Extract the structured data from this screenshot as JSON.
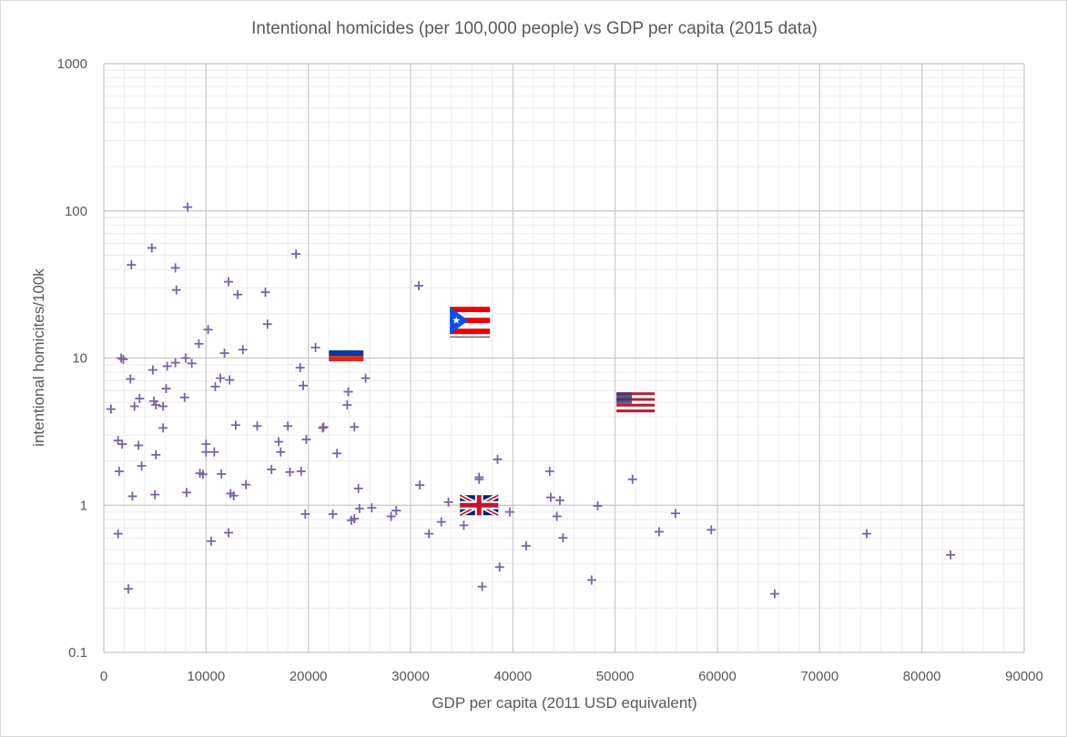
{
  "chart_data": {
    "type": "scatter",
    "title": "Intentional homicides (per 100,000 people) vs GDP per capita (2015 data)",
    "xlabel": "GDP per capita (2011 USD equivalent)",
    "ylabel": "intentional homicites/100k",
    "xlim": [
      0,
      90000
    ],
    "ylim": [
      0.1,
      1000
    ],
    "yscale": "log",
    "x_ticks": [
      "0",
      "10000",
      "20000",
      "30000",
      "40000",
      "50000",
      "60000",
      "70000",
      "80000",
      "90000"
    ],
    "y_ticks": [
      "0.1",
      "1",
      "10",
      "100",
      "1000"
    ],
    "grid": true,
    "marker": "+",
    "marker_color": "#7E62A4",
    "points": [
      {
        "x": 700,
        "y": 4.5
      },
      {
        "x": 1400,
        "y": 2.75
      },
      {
        "x": 1400,
        "y": 0.64
      },
      {
        "x": 1500,
        "y": 1.7
      },
      {
        "x": 1700,
        "y": 10
      },
      {
        "x": 1800,
        "y": 2.6
      },
      {
        "x": 1900,
        "y": 9.8
      },
      {
        "x": 2400,
        "y": 0.27
      },
      {
        "x": 2600,
        "y": 7.2
      },
      {
        "x": 2700,
        "y": 43
      },
      {
        "x": 2800,
        "y": 1.15
      },
      {
        "x": 3000,
        "y": 4.7
      },
      {
        "x": 3400,
        "y": 2.55
      },
      {
        "x": 3500,
        "y": 5.3
      },
      {
        "x": 3700,
        "y": 1.85
      },
      {
        "x": 4700,
        "y": 56
      },
      {
        "x": 4800,
        "y": 8.3
      },
      {
        "x": 4900,
        "y": 5.1
      },
      {
        "x": 5000,
        "y": 1.18
      },
      {
        "x": 5100,
        "y": 2.2
      },
      {
        "x": 5100,
        "y": 4.8
      },
      {
        "x": 5800,
        "y": 4.7
      },
      {
        "x": 5800,
        "y": 3.35
      },
      {
        "x": 6100,
        "y": 6.2
      },
      {
        "x": 6200,
        "y": 8.8
      },
      {
        "x": 7000,
        "y": 9.3
      },
      {
        "x": 7000,
        "y": 41
      },
      {
        "x": 7100,
        "y": 29
      },
      {
        "x": 7900,
        "y": 5.4
      },
      {
        "x": 8000,
        "y": 10
      },
      {
        "x": 8100,
        "y": 1.22
      },
      {
        "x": 8200,
        "y": 106
      },
      {
        "x": 8600,
        "y": 9.2
      },
      {
        "x": 9300,
        "y": 12.5
      },
      {
        "x": 9400,
        "y": 1.65
      },
      {
        "x": 9700,
        "y": 1.62
      },
      {
        "x": 10000,
        "y": 2.3
      },
      {
        "x": 10000,
        "y": 2.6
      },
      {
        "x": 10200,
        "y": 15.6
      },
      {
        "x": 10500,
        "y": 0.57
      },
      {
        "x": 10800,
        "y": 2.3
      },
      {
        "x": 10900,
        "y": 6.4
      },
      {
        "x": 11400,
        "y": 7.3
      },
      {
        "x": 11500,
        "y": 1.63
      },
      {
        "x": 11800,
        "y": 10.8
      },
      {
        "x": 12200,
        "y": 33
      },
      {
        "x": 12200,
        "y": 0.65
      },
      {
        "x": 12300,
        "y": 7.1
      },
      {
        "x": 12400,
        "y": 1.2
      },
      {
        "x": 12700,
        "y": 1.16
      },
      {
        "x": 12900,
        "y": 3.5
      },
      {
        "x": 13100,
        "y": 27
      },
      {
        "x": 13600,
        "y": 11.4
      },
      {
        "x": 13900,
        "y": 1.38
      },
      {
        "x": 15000,
        "y": 3.45
      },
      {
        "x": 15800,
        "y": 28
      },
      {
        "x": 16000,
        "y": 17
      },
      {
        "x": 16400,
        "y": 1.75
      },
      {
        "x": 17100,
        "y": 2.7
      },
      {
        "x": 17300,
        "y": 2.3
      },
      {
        "x": 18000,
        "y": 3.45
      },
      {
        "x": 18200,
        "y": 1.68
      },
      {
        "x": 18800,
        "y": 51
      },
      {
        "x": 19200,
        "y": 8.6
      },
      {
        "x": 19300,
        "y": 1.7
      },
      {
        "x": 19500,
        "y": 6.5
      },
      {
        "x": 19700,
        "y": 0.87
      },
      {
        "x": 19800,
        "y": 2.8
      },
      {
        "x": 20700,
        "y": 11.8
      },
      {
        "x": 21400,
        "y": 3.35
      },
      {
        "x": 21500,
        "y": 3.4
      },
      {
        "x": 22400,
        "y": 0.87
      },
      {
        "x": 22800,
        "y": 2.25
      },
      {
        "x": 23700,
        "y": 11.4
      },
      {
        "x": 23800,
        "y": 4.8
      },
      {
        "x": 23900,
        "y": 5.9
      },
      {
        "x": 24200,
        "y": 0.79
      },
      {
        "x": 24500,
        "y": 3.4
      },
      {
        "x": 24500,
        "y": 0.81
      },
      {
        "x": 24900,
        "y": 1.3
      },
      {
        "x": 25000,
        "y": 0.95
      },
      {
        "x": 25600,
        "y": 7.3
      },
      {
        "x": 26200,
        "y": 0.96
      },
      {
        "x": 28100,
        "y": 0.84
      },
      {
        "x": 28600,
        "y": 0.92
      },
      {
        "x": 30800,
        "y": 31
      },
      {
        "x": 30900,
        "y": 1.37
      },
      {
        "x": 31800,
        "y": 0.64
      },
      {
        "x": 33000,
        "y": 0.77
      },
      {
        "x": 33700,
        "y": 1.05
      },
      {
        "x": 35200,
        "y": 0.73
      },
      {
        "x": 36700,
        "y": 1.55
      },
      {
        "x": 36700,
        "y": 1.5
      },
      {
        "x": 37000,
        "y": 0.28
      },
      {
        "x": 38500,
        "y": 2.05
      },
      {
        "x": 38700,
        "y": 0.38
      },
      {
        "x": 39700,
        "y": 0.9
      },
      {
        "x": 41300,
        "y": 0.53
      },
      {
        "x": 43600,
        "y": 1.7
      },
      {
        "x": 43700,
        "y": 1.13
      },
      {
        "x": 44300,
        "y": 0.84
      },
      {
        "x": 44600,
        "y": 1.08
      },
      {
        "x": 44900,
        "y": 0.6
      },
      {
        "x": 47700,
        "y": 0.31
      },
      {
        "x": 48300,
        "y": 0.99
      },
      {
        "x": 51700,
        "y": 1.5
      },
      {
        "x": 52800,
        "y": 4.9
      },
      {
        "x": 54300,
        "y": 0.66
      },
      {
        "x": 55900,
        "y": 0.88
      },
      {
        "x": 59400,
        "y": 0.68
      },
      {
        "x": 65600,
        "y": 0.25
      },
      {
        "x": 74600,
        "y": 0.64
      },
      {
        "x": 82800,
        "y": 0.46
      }
    ],
    "annotations": [
      {
        "type": "flag",
        "icon": "russia-flag-icon",
        "x": 23700,
        "y": 10.8,
        "colors": [
          "#ffffff",
          "#0039A6",
          "#D52B1E"
        ]
      },
      {
        "type": "flag",
        "icon": "puerto-rico-flag-icon",
        "x": 35800,
        "y": 18,
        "colors": [
          "#ED0000",
          "#ffffff",
          "#0050F0"
        ]
      },
      {
        "type": "flag",
        "icon": "united-kingdom-flag-icon",
        "x": 36700,
        "y": 1.0,
        "colors": [
          "#012169",
          "#ffffff",
          "#C8102E"
        ]
      },
      {
        "type": "flag",
        "icon": "united-states-flag-icon",
        "x": 52000,
        "y": 5.0,
        "colors": [
          "#B22234",
          "#ffffff",
          "#3C3B6E"
        ]
      }
    ]
  }
}
